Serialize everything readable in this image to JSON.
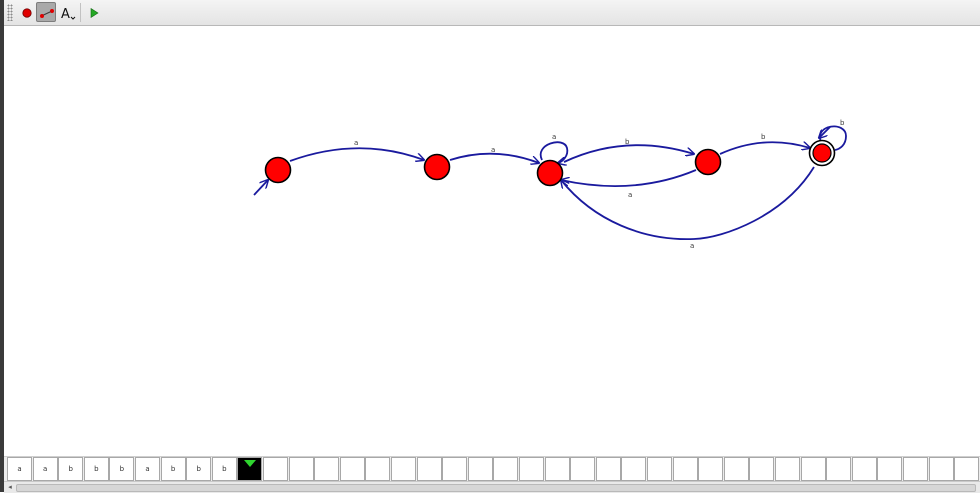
{
  "app": {
    "window": "automaton-editor"
  },
  "toolbar": {
    "tools": [
      {
        "name": "state-tool",
        "icon": "state-icon",
        "active": false
      },
      {
        "name": "transition-tool",
        "icon": "transition-icon",
        "active": true
      },
      {
        "name": "label-tool",
        "icon": "text-label-icon",
        "label": "A",
        "active": false
      },
      {
        "name": "run-tool",
        "icon": "play-icon",
        "active": false
      }
    ]
  },
  "automaton": {
    "state_color": "#ff0000",
    "edge_color": "#1a1a9e",
    "states": [
      {
        "id": "q0",
        "initial": true,
        "final": false
      },
      {
        "id": "q1",
        "initial": false,
        "final": false
      },
      {
        "id": "q2",
        "initial": false,
        "final": false
      },
      {
        "id": "q3",
        "initial": false,
        "final": false
      },
      {
        "id": "q4",
        "initial": false,
        "final": true
      }
    ],
    "transitions": [
      {
        "from": "q0",
        "to": "q1",
        "symbol": "a"
      },
      {
        "from": "q1",
        "to": "q2",
        "symbol": "a"
      },
      {
        "from": "q2",
        "to": "q2",
        "symbol": "a"
      },
      {
        "from": "q2",
        "to": "q3",
        "symbol": "b"
      },
      {
        "from": "q3",
        "to": "q2",
        "symbol": "a"
      },
      {
        "from": "q3",
        "to": "q4",
        "symbol": "b"
      },
      {
        "from": "q4",
        "to": "q4",
        "symbol": "b"
      },
      {
        "from": "q4",
        "to": "q2",
        "symbol": "a"
      }
    ]
  },
  "tape": {
    "symbols": [
      "a",
      "a",
      "b",
      "b",
      "b",
      "a",
      "b",
      "b",
      "b"
    ],
    "head_index": 9,
    "head_color": "#2fd52f"
  },
  "scrollbar": {
    "left_arrow": "◂"
  }
}
